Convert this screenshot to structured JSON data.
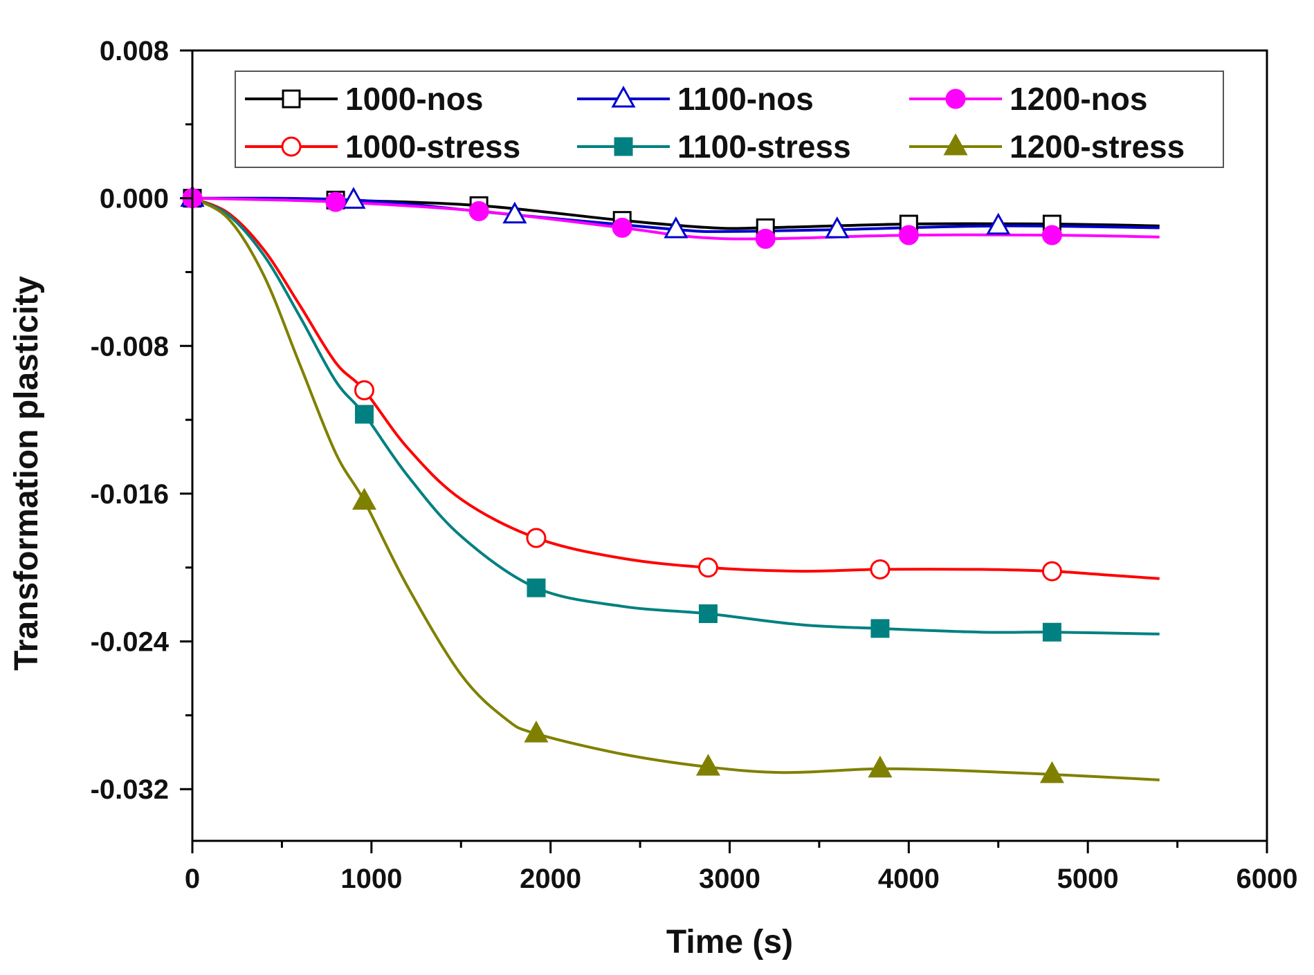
{
  "chart_data": {
    "type": "line",
    "title": "",
    "xlabel": "Time (s)",
    "ylabel": "Transformation plasticity",
    "xlim": [
      0,
      6000
    ],
    "ylim": [
      -0.0348,
      0.008
    ],
    "xticks": [
      0,
      1000,
      2000,
      3000,
      4000,
      5000,
      6000
    ],
    "xtick_labels": [
      "0",
      "1000",
      "2000",
      "3000",
      "4000",
      "5000",
      "6000"
    ],
    "yticks": [
      0.008,
      0.0,
      -0.008,
      -0.016,
      -0.024,
      -0.032
    ],
    "ytick_labels": [
      "0.008",
      "0.000",
      "-0.008",
      "-0.016",
      "-0.024",
      "-0.032"
    ],
    "grid": false,
    "legend_position": "top",
    "series": [
      {
        "name": "1000-nos",
        "color": "#000000",
        "marker": "square-open",
        "x": [
          0,
          800,
          1600,
          2400,
          2900,
          3200,
          4000,
          4800,
          5400
        ],
        "y": [
          0.0,
          -0.0001,
          -0.0004,
          -0.0012,
          -0.0016,
          -0.0016,
          -0.0014,
          -0.0014,
          -0.0015
        ],
        "marker_x": [
          0,
          800,
          1600,
          2400,
          3200,
          4000,
          4800
        ],
        "marker_y": [
          0.0,
          -0.0001,
          -0.0004,
          -0.0012,
          -0.0016,
          -0.0014,
          -0.0014
        ]
      },
      {
        "name": "1100-nos",
        "color": "#0000cc",
        "marker": "triangle-open",
        "x": [
          0,
          900,
          1800,
          2700,
          3000,
          3600,
          4500,
          5400
        ],
        "y": [
          0.0,
          -0.0001,
          -0.0009,
          -0.0017,
          -0.0018,
          -0.0017,
          -0.0015,
          -0.0016
        ],
        "marker_x": [
          0,
          900,
          1800,
          2700,
          3600,
          4500
        ],
        "marker_y": [
          0.0,
          -0.0001,
          -0.0009,
          -0.0017,
          -0.0017,
          -0.0015
        ]
      },
      {
        "name": "1200-nos",
        "color": "#ff00ff",
        "marker": "circle-filled",
        "x": [
          0,
          800,
          1600,
          2400,
          2800,
          3200,
          4000,
          4800,
          5400
        ],
        "y": [
          0.0,
          -0.0002,
          -0.0007,
          -0.0016,
          -0.0021,
          -0.0022,
          -0.002,
          -0.002,
          -0.0021
        ],
        "marker_x": [
          0,
          800,
          1600,
          2400,
          3200,
          4000,
          4800
        ],
        "marker_y": [
          0.0,
          -0.0002,
          -0.0007,
          -0.0016,
          -0.0022,
          -0.002,
          -0.002
        ]
      },
      {
        "name": "1000-stress",
        "color": "#ff0000",
        "marker": "circle-open",
        "x": [
          0,
          200,
          400,
          600,
          800,
          960,
          1200,
          1500,
          1920,
          2400,
          2880,
          3400,
          3840,
          4400,
          4800,
          5100,
          5400
        ],
        "y": [
          0.0,
          -0.0008,
          -0.0028,
          -0.0058,
          -0.0089,
          -0.0104,
          -0.0135,
          -0.0163,
          -0.0184,
          -0.0195,
          -0.02,
          -0.0202,
          -0.0201,
          -0.0201,
          -0.0202,
          -0.0204,
          -0.0206
        ],
        "marker_x": [
          960,
          1920,
          2880,
          3840,
          4800
        ],
        "marker_y": [
          -0.0104,
          -0.0184,
          -0.02,
          -0.0201,
          -0.0202
        ]
      },
      {
        "name": "1100-stress",
        "color": "#008080",
        "marker": "square-filled",
        "x": [
          0,
          200,
          400,
          600,
          800,
          960,
          1200,
          1500,
          1920,
          2400,
          2880,
          3400,
          3840,
          4400,
          4800,
          5400
        ],
        "y": [
          0.0,
          -0.0009,
          -0.0031,
          -0.0064,
          -0.0099,
          -0.0117,
          -0.015,
          -0.0183,
          -0.0211,
          -0.0221,
          -0.0225,
          -0.0231,
          -0.0233,
          -0.0235,
          -0.0235,
          -0.0236
        ],
        "marker_x": [
          960,
          1920,
          2880,
          3840,
          4800
        ],
        "marker_y": [
          -0.0117,
          -0.0211,
          -0.0225,
          -0.0233,
          -0.0235
        ]
      },
      {
        "name": "1200-stress",
        "color": "#808000",
        "marker": "triangle-filled",
        "x": [
          0,
          200,
          400,
          600,
          800,
          960,
          1200,
          1500,
          1750,
          1920,
          2400,
          2880,
          3300,
          3840,
          4300,
          4800,
          5400
        ],
        "y": [
          0.0,
          -0.0011,
          -0.0042,
          -0.009,
          -0.0138,
          -0.0164,
          -0.021,
          -0.0258,
          -0.0282,
          -0.029,
          -0.0301,
          -0.0308,
          -0.0311,
          -0.0309,
          -0.031,
          -0.0312,
          -0.0315
        ],
        "marker_x": [
          960,
          1920,
          2880,
          3840,
          4800
        ],
        "marker_y": [
          -0.0164,
          -0.029,
          -0.0308,
          -0.0309,
          -0.0312
        ]
      }
    ]
  }
}
